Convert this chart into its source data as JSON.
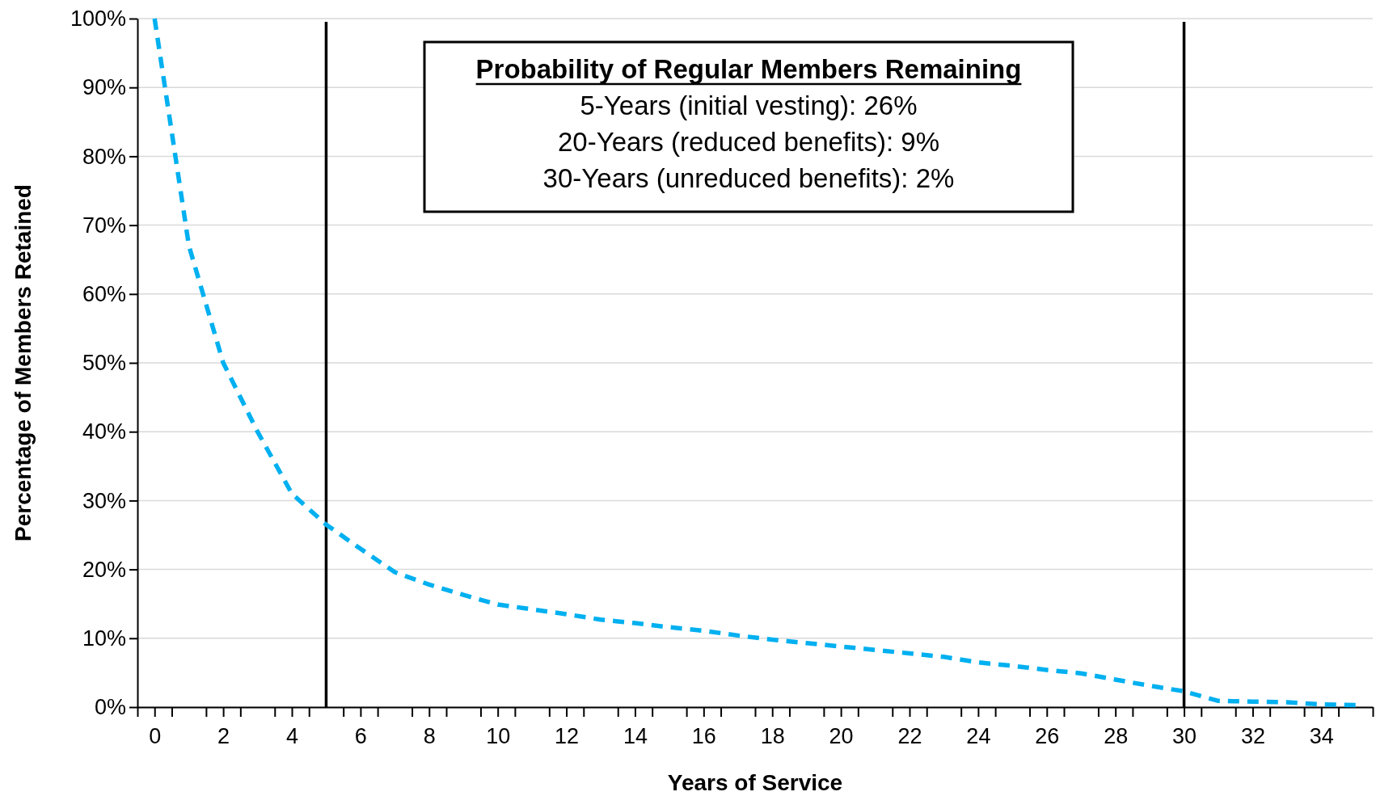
{
  "chart_data": {
    "type": "line",
    "xlabel": "Years of Service",
    "ylabel": "Percentage of Members Retained",
    "x": [
      0,
      1,
      2,
      3,
      4,
      5,
      6,
      7,
      8,
      9,
      10,
      11,
      12,
      13,
      14,
      15,
      16,
      17,
      18,
      19,
      20,
      21,
      22,
      23,
      24,
      25,
      26,
      27,
      28,
      29,
      30,
      31,
      32,
      33,
      34,
      35
    ],
    "series": [
      {
        "color": "#00b0f0",
        "values": [
          100,
          67,
          50,
          40,
          31,
          26.5,
          23,
          19.6,
          17.8,
          16.3,
          14.9,
          14.2,
          13.5,
          12.7,
          12.2,
          11.6,
          11.1,
          10.4,
          9.8,
          9.3,
          8.8,
          8.3,
          7.8,
          7.3,
          6.5,
          6,
          5.4,
          4.9,
          4,
          3.1,
          2.3,
          0.9,
          0.8,
          0.7,
          0.4,
          0.3
        ]
      }
    ],
    "line_style": "dashed",
    "marker": "none",
    "grid": "y",
    "xlim": [
      -0.5,
      35.5
    ],
    "xticks": [
      {
        "value": -0.5,
        "label": null
      },
      {
        "value": 0,
        "label": "0"
      },
      {
        "value": 0.5,
        "label": null
      },
      {
        "value": 1.5,
        "label": null
      },
      {
        "value": 2,
        "label": "2"
      },
      {
        "value": 2.5,
        "label": null
      },
      {
        "value": 3.5,
        "label": null
      },
      {
        "value": 4,
        "label": "4"
      },
      {
        "value": 4.5,
        "label": null
      },
      {
        "value": 5.5,
        "label": null
      },
      {
        "value": 6,
        "label": "6"
      },
      {
        "value": 6.5,
        "label": null
      },
      {
        "value": 7.5,
        "label": null
      },
      {
        "value": 8,
        "label": "8"
      },
      {
        "value": 8.5,
        "label": null
      },
      {
        "value": 9.5,
        "label": null
      },
      {
        "value": 10,
        "label": "10"
      },
      {
        "value": 10.5,
        "label": null
      },
      {
        "value": 11.5,
        "label": null
      },
      {
        "value": 12,
        "label": "12"
      },
      {
        "value": 12.5,
        "label": null
      },
      {
        "value": 13.5,
        "label": null
      },
      {
        "value": 14,
        "label": "14"
      },
      {
        "value": 14.5,
        "label": null
      },
      {
        "value": 15.5,
        "label": null
      },
      {
        "value": 16,
        "label": "16"
      },
      {
        "value": 16.5,
        "label": null
      },
      {
        "value": 17.5,
        "label": null
      },
      {
        "value": 18,
        "label": "18"
      },
      {
        "value": 18.5,
        "label": null
      },
      {
        "value": 19.5,
        "label": null
      },
      {
        "value": 20,
        "label": "20"
      },
      {
        "value": 20.5,
        "label": null
      },
      {
        "value": 21.5,
        "label": null
      },
      {
        "value": 22,
        "label": "22"
      },
      {
        "value": 22.5,
        "label": null
      },
      {
        "value": 23.5,
        "label": null
      },
      {
        "value": 24,
        "label": "24"
      },
      {
        "value": 24.5,
        "label": null
      },
      {
        "value": 25.5,
        "label": null
      },
      {
        "value": 26,
        "label": "26"
      },
      {
        "value": 26.5,
        "label": null
      },
      {
        "value": 27.5,
        "label": null
      },
      {
        "value": 28,
        "label": "28"
      },
      {
        "value": 28.5,
        "label": null
      },
      {
        "value": 29.5,
        "label": null
      },
      {
        "value": 30,
        "label": "30"
      },
      {
        "value": 30.5,
        "label": null
      },
      {
        "value": 31.5,
        "label": null
      },
      {
        "value": 32,
        "label": "32"
      },
      {
        "value": 32.5,
        "label": null
      },
      {
        "value": 33.5,
        "label": null
      },
      {
        "value": 34,
        "label": "34"
      },
      {
        "value": 34.5,
        "label": null
      },
      {
        "value": 35.5,
        "label": null
      }
    ],
    "ylim": [
      0,
      100
    ],
    "yticks": [
      {
        "value": 0,
        "label": "0%"
      },
      {
        "value": 10,
        "label": "10%"
      },
      {
        "value": 20,
        "label": "20%"
      },
      {
        "value": 30,
        "label": "30%"
      },
      {
        "value": 40,
        "label": "40%"
      },
      {
        "value": 50,
        "label": "50%"
      },
      {
        "value": 60,
        "label": "60%"
      },
      {
        "value": 70,
        "label": "70%"
      },
      {
        "value": 80,
        "label": "80%"
      },
      {
        "value": 90,
        "label": "90%"
      },
      {
        "value": 100,
        "label": "100%"
      }
    ],
    "ref_lines": [
      {
        "axis": "x",
        "value": 5,
        "color": "#000000"
      },
      {
        "axis": "x",
        "value": 30,
        "color": "#000000"
      }
    ],
    "annotations": [
      "Probability of Regular Members Remaining",
      "5-Years (initial vesting): 26%",
      "20-Years (reduced benefits): 9%",
      "30-Years (unreduced benefits): 2%"
    ]
  }
}
